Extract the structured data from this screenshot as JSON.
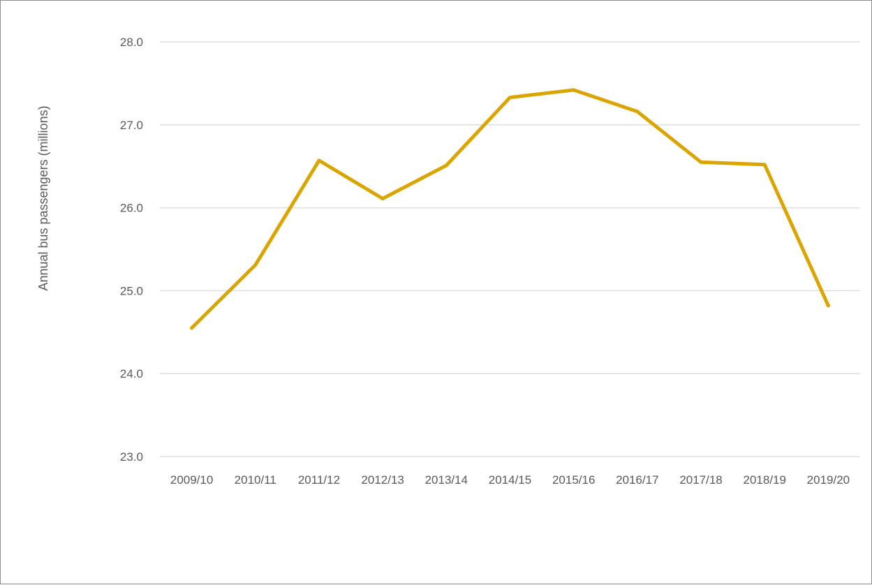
{
  "chart_data": {
    "type": "line",
    "title": "",
    "xlabel": "",
    "ylabel": "Annual bus passengers (millions)",
    "categories": [
      "2009/10",
      "2010/11",
      "2011/12",
      "2012/13",
      "2013/14",
      "2014/15",
      "2015/16",
      "2016/17",
      "2017/18",
      "2018/19",
      "2019/20"
    ],
    "series": [
      {
        "name": "",
        "color": "#DBA500",
        "values": [
          24.55,
          25.31,
          26.57,
          26.11,
          26.51,
          27.33,
          27.42,
          27.16,
          26.55,
          26.52,
          24.82
        ]
      }
    ],
    "ylim": [
      23.0,
      28.0
    ],
    "yticks": [
      "23.0",
      "24.0",
      "25.0",
      "26.0",
      "27.0",
      "28.0"
    ],
    "grid": "horizontal",
    "legend": "none"
  }
}
